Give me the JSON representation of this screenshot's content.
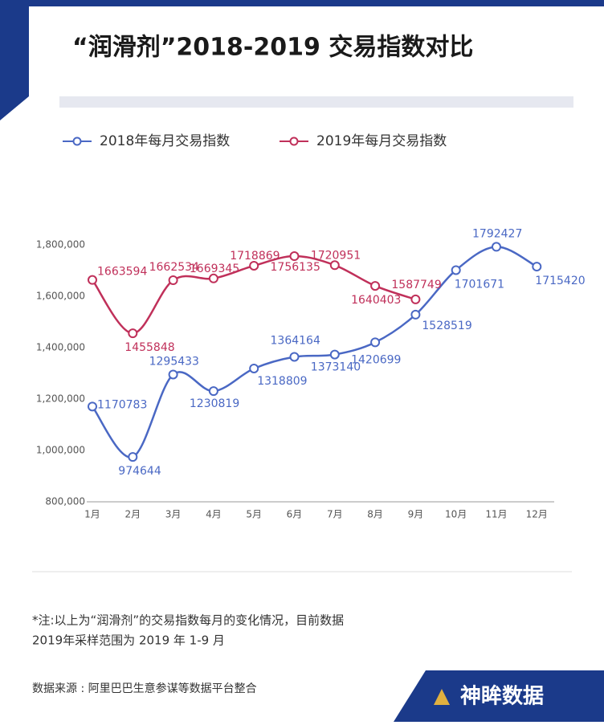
{
  "chart_data": {
    "type": "line",
    "title": "“润滑剂”2018-2019 交易指数对比",
    "categories": [
      "1月",
      "2月",
      "3月",
      "4月",
      "5月",
      "6月",
      "7月",
      "8月",
      "9月",
      "10月",
      "11月",
      "12月"
    ],
    "series": [
      {
        "name": "2018年每月交易指数",
        "color": "#4a68c4",
        "values": [
          1170783,
          974644,
          1295433,
          1230819,
          1318809,
          1364164,
          1373140,
          1420699,
          1528519,
          1701671,
          1792427,
          1715420
        ]
      },
      {
        "name": "2019年每月交易指数",
        "color": "#c0305a",
        "values": [
          1663594,
          1455848,
          1662534,
          1669345,
          1718869,
          1756135,
          1720951,
          1640403,
          1587749,
          null,
          null,
          null
        ]
      }
    ],
    "ylim": [
      800000,
      1800000
    ],
    "yticks": [
      {
        "value": 800000,
        "label": "800,000"
      },
      {
        "value": 1000000,
        "label": "1,000,000"
      },
      {
        "value": 1200000,
        "label": "1,200,000"
      },
      {
        "value": 1400000,
        "label": "1,400,000"
      },
      {
        "value": 1600000,
        "label": "1,600,000"
      },
      {
        "value": 1800000,
        "label": "1,800,000"
      }
    ],
    "note_lines": [
      "*注:以上为“润滑剂”的交易指数每月的变化情况，目前数据",
      "2019年采样范围为 2019 年 1-9 月"
    ],
    "source": "数据来源 : 阿里巴巴生意参谋等数据平台整合",
    "brand": "神眸数据"
  }
}
